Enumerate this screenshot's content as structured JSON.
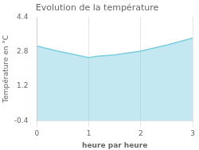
{
  "chart_data": {
    "type": "area",
    "title": "Evolution de la température",
    "xlabel": "heure par heure",
    "ylabel": "Température en °C",
    "x": [
      0,
      0.4,
      1.0,
      1.15,
      1.5,
      2.0,
      2.5,
      3.0
    ],
    "values": [
      3.05,
      2.82,
      2.52,
      2.58,
      2.65,
      2.82,
      3.1,
      3.42
    ],
    "color": "#7dcde0",
    "xlim": [
      0,
      3
    ],
    "xticks": [
      0,
      1,
      2,
      3
    ],
    "ylim": [
      -0.4,
      4.4
    ],
    "yticks": [
      -0.4,
      1.2,
      2.8,
      4.4
    ],
    "grid": "x"
  }
}
